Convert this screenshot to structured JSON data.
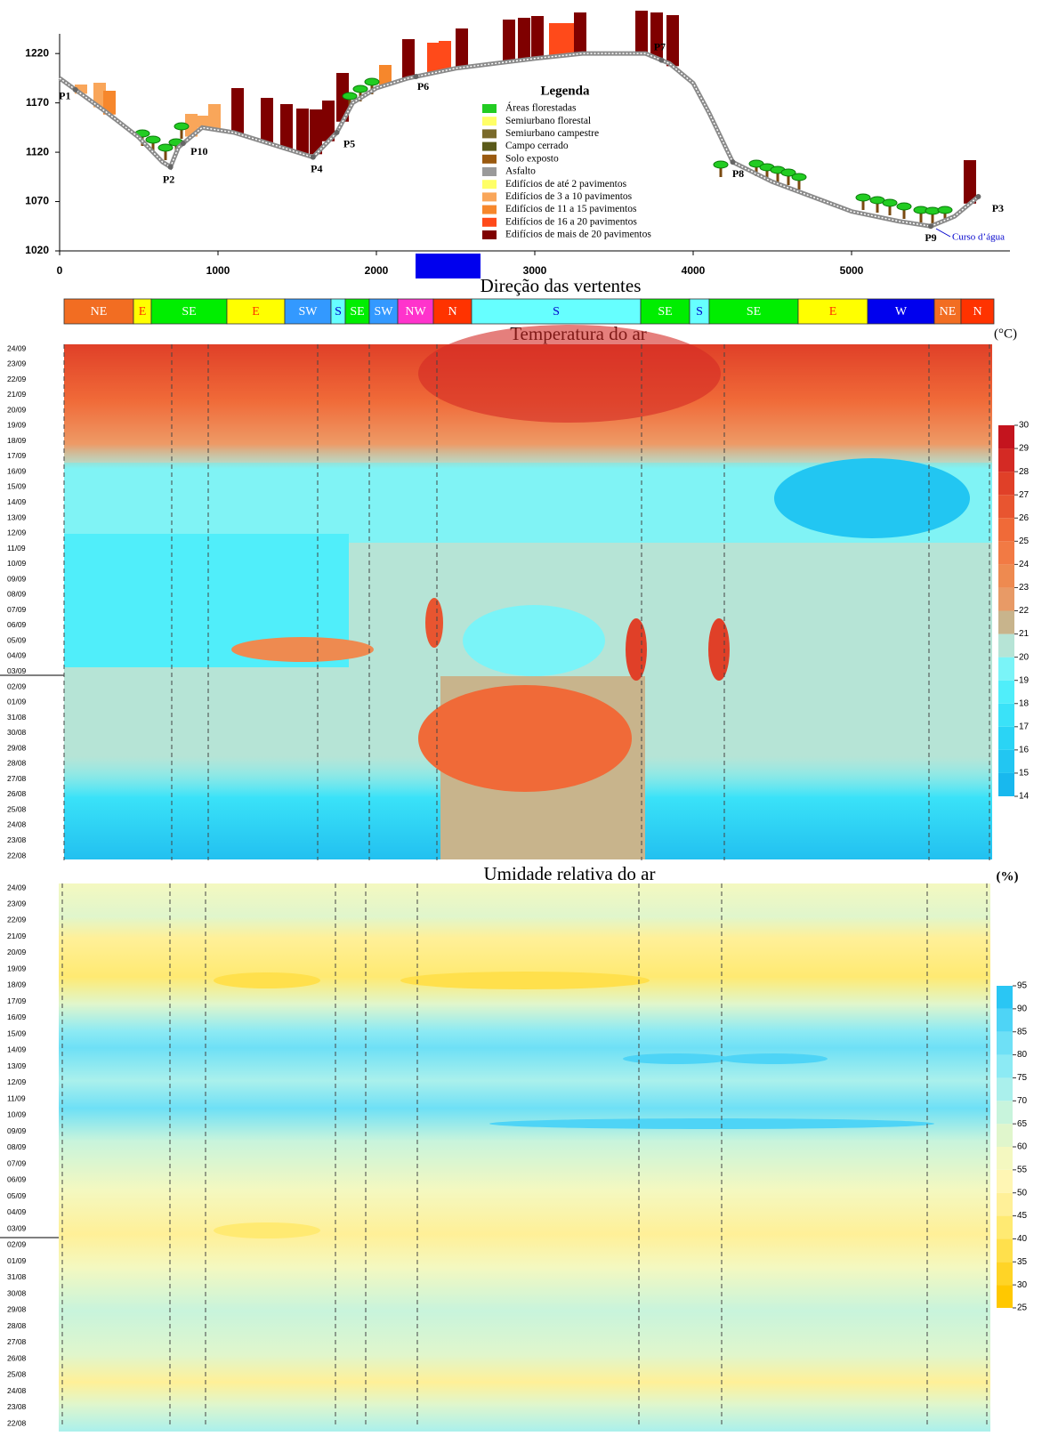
{
  "profile": {
    "type": "line",
    "x": [
      0,
      300,
      500,
      650,
      700,
      750,
      900,
      1100,
      1300,
      1600,
      1750,
      1850,
      2000,
      2200,
      2500,
      3000,
      3300,
      3700,
      3850,
      4000,
      4100,
      4250,
      4500,
      5000,
      5300,
      5500,
      5650,
      5800
    ],
    "y": [
      1195,
      1160,
      1135,
      1110,
      1105,
      1125,
      1145,
      1140,
      1130,
      1115,
      1140,
      1170,
      1185,
      1195,
      1205,
      1215,
      1220,
      1220,
      1210,
      1190,
      1160,
      1110,
      1090,
      1060,
      1050,
      1045,
      1055,
      1075
    ],
    "color": "#8a8a8a",
    "xlim": [
      0,
      6000
    ],
    "ylim": [
      1020,
      1240
    ],
    "xticks": [
      0,
      1000,
      2000,
      3000,
      4000,
      5000
    ],
    "yticks": [
      1020,
      1070,
      1120,
      1170,
      1220
    ],
    "points": [
      {
        "label": "P1",
        "x": 100
      },
      {
        "label": "P2",
        "x": 700
      },
      {
        "label": "P10",
        "x": 780
      },
      {
        "label": "P4",
        "x": 1600
      },
      {
        "label": "P5",
        "x": 1750
      },
      {
        "label": "P6",
        "x": 2250
      },
      {
        "label": "P7",
        "x": 3800
      },
      {
        "label": "P8",
        "x": 4250
      },
      {
        "label": "P9",
        "x": 5500
      },
      {
        "label": "P3",
        "x": 5800
      }
    ],
    "annotation": "Curso d’água",
    "legend": {
      "title": "Legenda",
      "items": [
        {
          "label": "Áreas florestadas",
          "color": "#22cc22"
        },
        {
          "label": "Semiurbano florestal",
          "color": "#ffff66"
        },
        {
          "label": "Semiurbano campestre",
          "color": "#7a6a2a"
        },
        {
          "label": "Campo cerrado",
          "color": "#5a5a1a"
        },
        {
          "label": "Solo exposto",
          "color": "#9a5a10"
        },
        {
          "label": "Asfalto",
          "color": "#9a9a9a"
        },
        {
          "label": "Edifícios de até 2 pavimentos",
          "color": "#ffff66"
        },
        {
          "label": "Edifícios de 3 a 10 pavimentos",
          "color": "#f9a65a"
        },
        {
          "label": "Edifícios de 11 a 15 pavimentos",
          "color": "#f6872c"
        },
        {
          "label": "Edifícios de 16 a 20 pavimentos",
          "color": "#ff4a1a"
        },
        {
          "label": "Edifícios de mais de 20 pavimentos",
          "color": "#7f0000"
        }
      ]
    }
  },
  "aspect": {
    "title": "Direção das vertentes",
    "segments": [
      {
        "label": "NE",
        "color": "#f26d22"
      },
      {
        "label": "E",
        "color": "#ffff00"
      },
      {
        "label": "SE",
        "color": "#00ee00"
      },
      {
        "label": "E",
        "color": "#ffff00"
      },
      {
        "label": "SW",
        "color": "#3399ff"
      },
      {
        "label": "S",
        "color": "#66ffff"
      },
      {
        "label": "SE",
        "color": "#00ee00"
      },
      {
        "label": "SW",
        "color": "#3399ff"
      },
      {
        "label": "NW",
        "color": "#ff33cc"
      },
      {
        "label": "N",
        "color": "#ff3300"
      },
      {
        "label": "S",
        "color": "#66ffff"
      },
      {
        "label": "SE",
        "color": "#00ee00"
      },
      {
        "label": "S",
        "color": "#66ffff"
      },
      {
        "label": "SE",
        "color": "#00ee00"
      },
      {
        "label": "E",
        "color": "#ffff00"
      },
      {
        "label": "W",
        "color": "#0000ee"
      },
      {
        "label": "NE",
        "color": "#f26d22"
      },
      {
        "label": "N",
        "color": "#ff3300"
      }
    ]
  },
  "temperature": {
    "title": "Temperatura do ar",
    "unit": "(°C)",
    "dates": [
      "24/09",
      "23/09",
      "22/09",
      "21/09",
      "20/09",
      "19/09",
      "18/09",
      "17/09",
      "16/09",
      "15/09",
      "14/09",
      "13/09",
      "12/09",
      "11/09",
      "10/09",
      "09/09",
      "08/09",
      "07/09",
      "06/09",
      "05/09",
      "04/09",
      "03/09",
      "02/09",
      "01/09",
      "31/08",
      "30/08",
      "29/08",
      "28/08",
      "27/08",
      "26/08",
      "25/08",
      "24/08",
      "23/08",
      "22/08"
    ],
    "colorbar": {
      "ticks": [
        14,
        15,
        16,
        17,
        18,
        19,
        20,
        21,
        22,
        23,
        24,
        25,
        26,
        27,
        28,
        29,
        30
      ],
      "colors": [
        "#18b8ee",
        "#22c6f2",
        "#2ad4f5",
        "#3ae2f8",
        "#50eefa",
        "#7af4f8",
        "#b6e4d6",
        "#c8b48c",
        "#e89a66",
        "#ee8a50",
        "#f27a44",
        "#f06a38",
        "#e85530",
        "#e04028",
        "#d42a24",
        "#c4141e"
      ]
    }
  },
  "humidity": {
    "title": "Umidade relativa do ar",
    "unit": "(%)",
    "dates": [
      "24/09",
      "23/09",
      "22/09",
      "21/09",
      "20/09",
      "19/09",
      "18/09",
      "17/09",
      "16/09",
      "15/09",
      "14/09",
      "13/09",
      "12/09",
      "11/09",
      "10/09",
      "09/09",
      "08/09",
      "07/09",
      "06/09",
      "05/09",
      "04/09",
      "03/09",
      "02/09",
      "01/09",
      "31/08",
      "30/08",
      "29/08",
      "28/08",
      "27/08",
      "26/08",
      "25/08",
      "24/08",
      "23/08",
      "22/08"
    ],
    "colorbar": {
      "ticks": [
        25,
        30,
        35,
        40,
        45,
        50,
        55,
        60,
        65,
        70,
        75,
        80,
        85,
        90,
        95
      ],
      "colors": [
        "#ffc800",
        "#ffd426",
        "#ffe04c",
        "#ffea72",
        "#fff098",
        "#fff6b4",
        "#f4f8c0",
        "#e0f6cc",
        "#c8f4dc",
        "#aaf0ec",
        "#8ceaf4",
        "#6ee0f6",
        "#4ed4f6",
        "#2ac6f4"
      ]
    }
  }
}
